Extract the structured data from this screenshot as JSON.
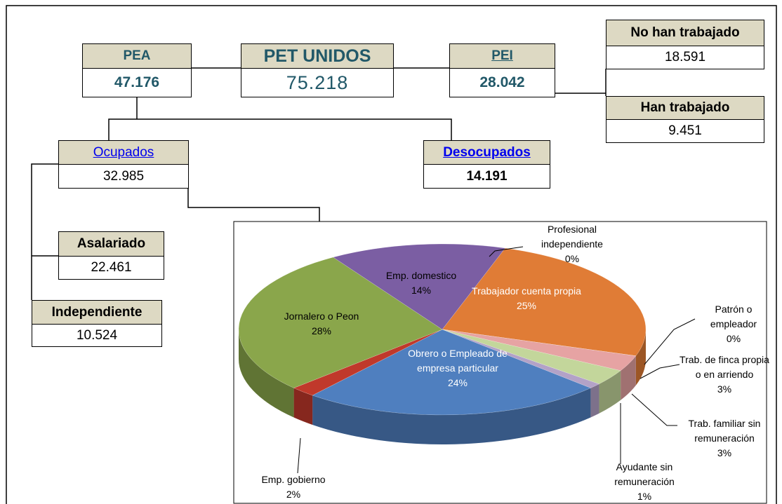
{
  "nodes": [
    {
      "label": "PEA",
      "value": "47.176"
    },
    {
      "label": "PET UNIDOS",
      "value": "75.218"
    },
    {
      "label": "PEI",
      "value": "28.042"
    },
    {
      "label": "No han trabajado",
      "value": "18.591"
    },
    {
      "label": "Han trabajado",
      "value": "9.451"
    },
    {
      "label": "Ocupados",
      "value": "32.985"
    },
    {
      "label": "Desocupados",
      "value": "14.191"
    },
    {
      "label": "Asalariado",
      "value": "22.461"
    },
    {
      "label": "Independiente",
      "value": "10.524"
    }
  ],
  "chart_data": {
    "type": "pie",
    "categories": [
      "Profesional independiente",
      "Trabajador cuenta propia",
      "Patrón o empleador",
      "Trab. de finca propia o en arriendo",
      "Trab. familiar sin remuneración",
      "Ayudante sin remuneración",
      "Obrero o Empleado de empresa particular",
      "Emp. gobierno",
      "Jornalero o Peon",
      "Emp. domestico"
    ],
    "values": [
      0,
      25,
      0,
      3,
      3,
      1,
      24,
      2,
      28,
      14
    ],
    "value_labels": [
      "0%",
      "25%",
      "0%",
      "3%",
      "3%",
      "1%",
      "24%",
      "2%",
      "28%",
      "14%"
    ],
    "colors": [
      "#4bacc6",
      "#e07c36",
      "#d99694",
      "#e6a3a3",
      "#c3d69b",
      "#b3a2c7",
      "#4f7fbf",
      "#c0392b",
      "#8aa64b",
      "#7b5ea3"
    ]
  }
}
